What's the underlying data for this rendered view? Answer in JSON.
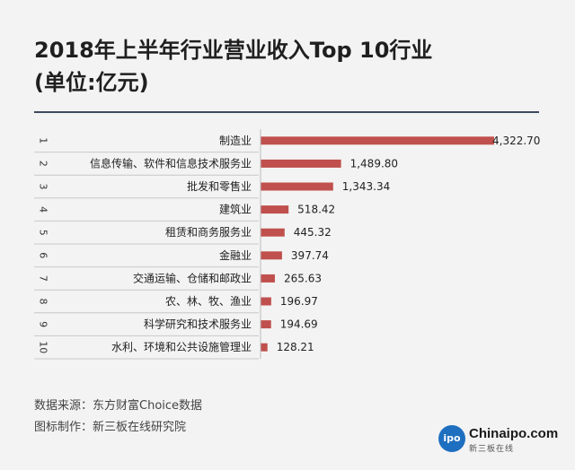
{
  "title_lines": [
    "2018年上半年行业营业收入Top 10行业",
    "(单位:亿元)"
  ],
  "chart_data": {
    "type": "bar",
    "orientation": "horizontal",
    "title": "2018年上半年行业营业收入Top 10行业 (单位:亿元)",
    "ranks": [
      "1",
      "2",
      "3",
      "4",
      "5",
      "6",
      "7",
      "8",
      "9",
      "10"
    ],
    "categories": [
      "制造业",
      "信息传输、软件和信息技术服务业",
      "批发和零售业",
      "建筑业",
      "租赁和商务服务业",
      "金融业",
      "交通运输、仓储和邮政业",
      "农、林、牧、渔业",
      "科学研究和技术服务业",
      "水利、环境和公共设施管理业"
    ],
    "values": [
      4322.7,
      1489.8,
      1343.34,
      518.42,
      445.32,
      397.74,
      265.63,
      196.97,
      194.69,
      128.21
    ],
    "value_labels": [
      "4,322.70",
      "1,489.80",
      "1,343.34",
      "518.42",
      "445.32",
      "397.74",
      "265.63",
      "196.97",
      "194.69",
      "128.21"
    ],
    "xlim": [
      0,
      4322.7
    ],
    "bar_color": "#c0504d",
    "grid": false,
    "legend": "none"
  },
  "footer": {
    "source": "数据来源：东方财富Choice数据",
    "maker": "图标制作：新三板在线研究院"
  },
  "logo": {
    "mark": "ipo",
    "brand": "Chinaipo.com",
    "sub": "新三板在线"
  }
}
